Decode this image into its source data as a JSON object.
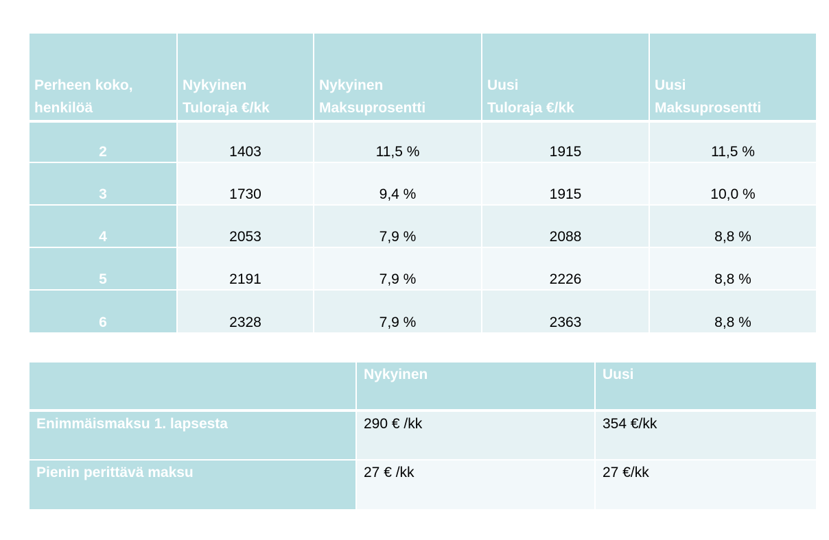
{
  "income_table": {
    "headers": [
      [
        "Perheen koko,",
        "henkilöä"
      ],
      [
        "Nykyinen",
        "Tuloraja €/kk"
      ],
      [
        "Nykyinen",
        "Maksuprosentti"
      ],
      [
        "Uusi",
        "Tuloraja €/kk"
      ],
      [
        "Uusi",
        "Maksuprosentti"
      ]
    ],
    "rows": [
      [
        "2",
        "1403",
        "11,5 %",
        "1915",
        "11,5 %"
      ],
      [
        "3",
        "1730",
        "9,4 %",
        "1915",
        "10,0 %"
      ],
      [
        "4",
        "2053",
        "7,9 %",
        "2088",
        "8,8 %"
      ],
      [
        "5",
        "2191",
        "7,9 %",
        "2226",
        "8,8 %"
      ],
      [
        "6",
        "2328",
        "7,9 %",
        "2363",
        "8,8 %"
      ]
    ]
  },
  "fee_table": {
    "headers": [
      "",
      "Nykyinen",
      "Uusi"
    ],
    "rows": [
      [
        "Enimmäismaksu 1. lapsesta",
        "290 € /kk",
        "354 €/kk"
      ],
      [
        "Pienin perittävä maksu",
        "27 € /kk",
        "27 €/kk"
      ]
    ]
  },
  "colors": {
    "header_bg": "#b8dfe3",
    "row_light": "#e6f2f4",
    "row_lighter": "#f2f8fa",
    "header_text": "#ffffff"
  }
}
